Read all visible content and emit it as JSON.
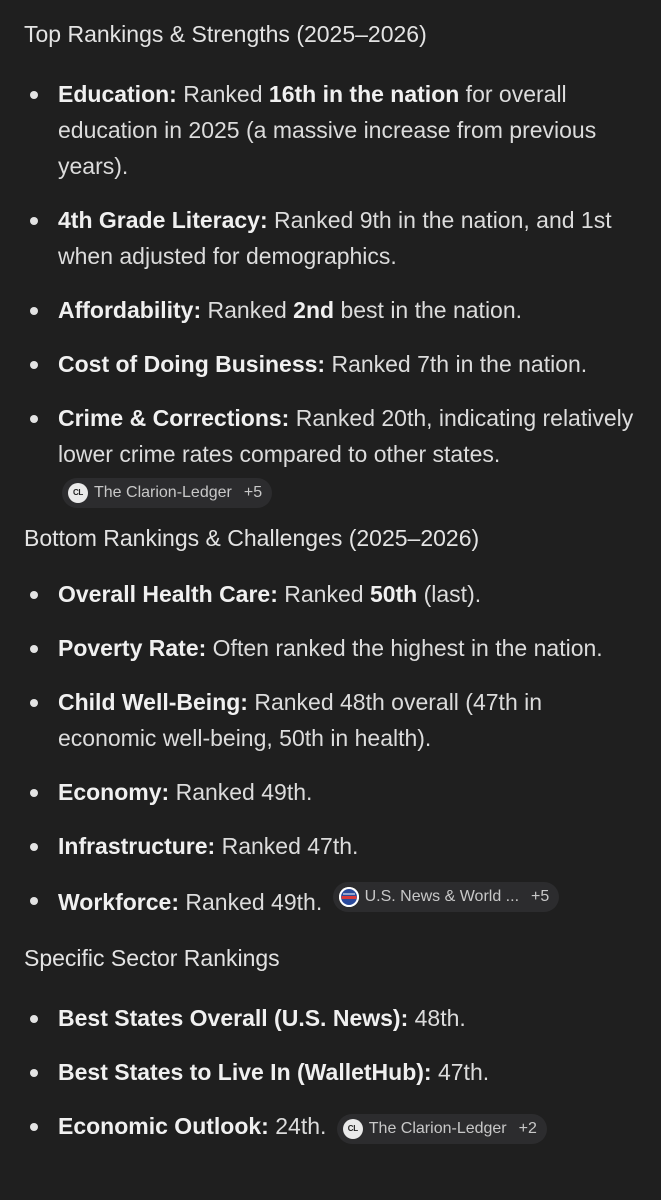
{
  "sections": [
    {
      "heading": "Top Rankings & Strengths (2025–2026)",
      "items": [
        {
          "label": "Education:",
          "parts": [
            " Ranked ",
            "16th in the nation",
            " for overall education in 2025 (a massive increase from previous years)."
          ]
        },
        {
          "label": "4th Grade Literacy:",
          "text": " Ranked 9th in the nation, and 1st when adjusted for demographics."
        },
        {
          "label": "Affordability:",
          "parts": [
            " Ranked ",
            "2nd",
            " best in the nation."
          ]
        },
        {
          "label": "Cost of Doing Business:",
          "text": " Ranked 7th in the nation."
        },
        {
          "label": "Crime & Corrections:",
          "text": " Ranked 20th, indicating relatively lower crime rates compared to other states.",
          "chip": {
            "logo": "CL",
            "source": "The Clarion-Ledger",
            "more": "+5"
          }
        }
      ]
    },
    {
      "heading": "Bottom Rankings & Challenges (2025–2026)",
      "items": [
        {
          "label": "Overall Health Care:",
          "parts": [
            " Ranked ",
            "50th",
            " (last)."
          ]
        },
        {
          "label": "Poverty Rate:",
          "text": " Often ranked the highest in the nation."
        },
        {
          "label": "Child Well-Being:",
          "text": " Ranked 48th overall (47th in economic well-being, 50th in health)."
        },
        {
          "label": "Economy:",
          "text": " Ranked 49th."
        },
        {
          "label": "Infrastructure:",
          "text": " Ranked 47th."
        },
        {
          "label": "Workforce:",
          "text": " Ranked 49th.",
          "chip": {
            "logo": "usnews-logo",
            "source": "U.S. News & World ...",
            "more": "+5"
          }
        }
      ]
    },
    {
      "heading": "Specific Sector Rankings",
      "items": [
        {
          "label": "Best States Overall (U.S. News):",
          "text": " 48th."
        },
        {
          "label": "Best States to Live In (WalletHub):",
          "text": " 47th."
        },
        {
          "label": "Economic Outlook:",
          "text": " 24th.",
          "chip": {
            "logo": "CL",
            "source": "The Clarion-Ledger",
            "more": "+2"
          }
        }
      ]
    }
  ],
  "colors": {
    "background": "#1f1f1f",
    "text": "#e3e3e3",
    "chip_background": "#2c2c2e"
  }
}
